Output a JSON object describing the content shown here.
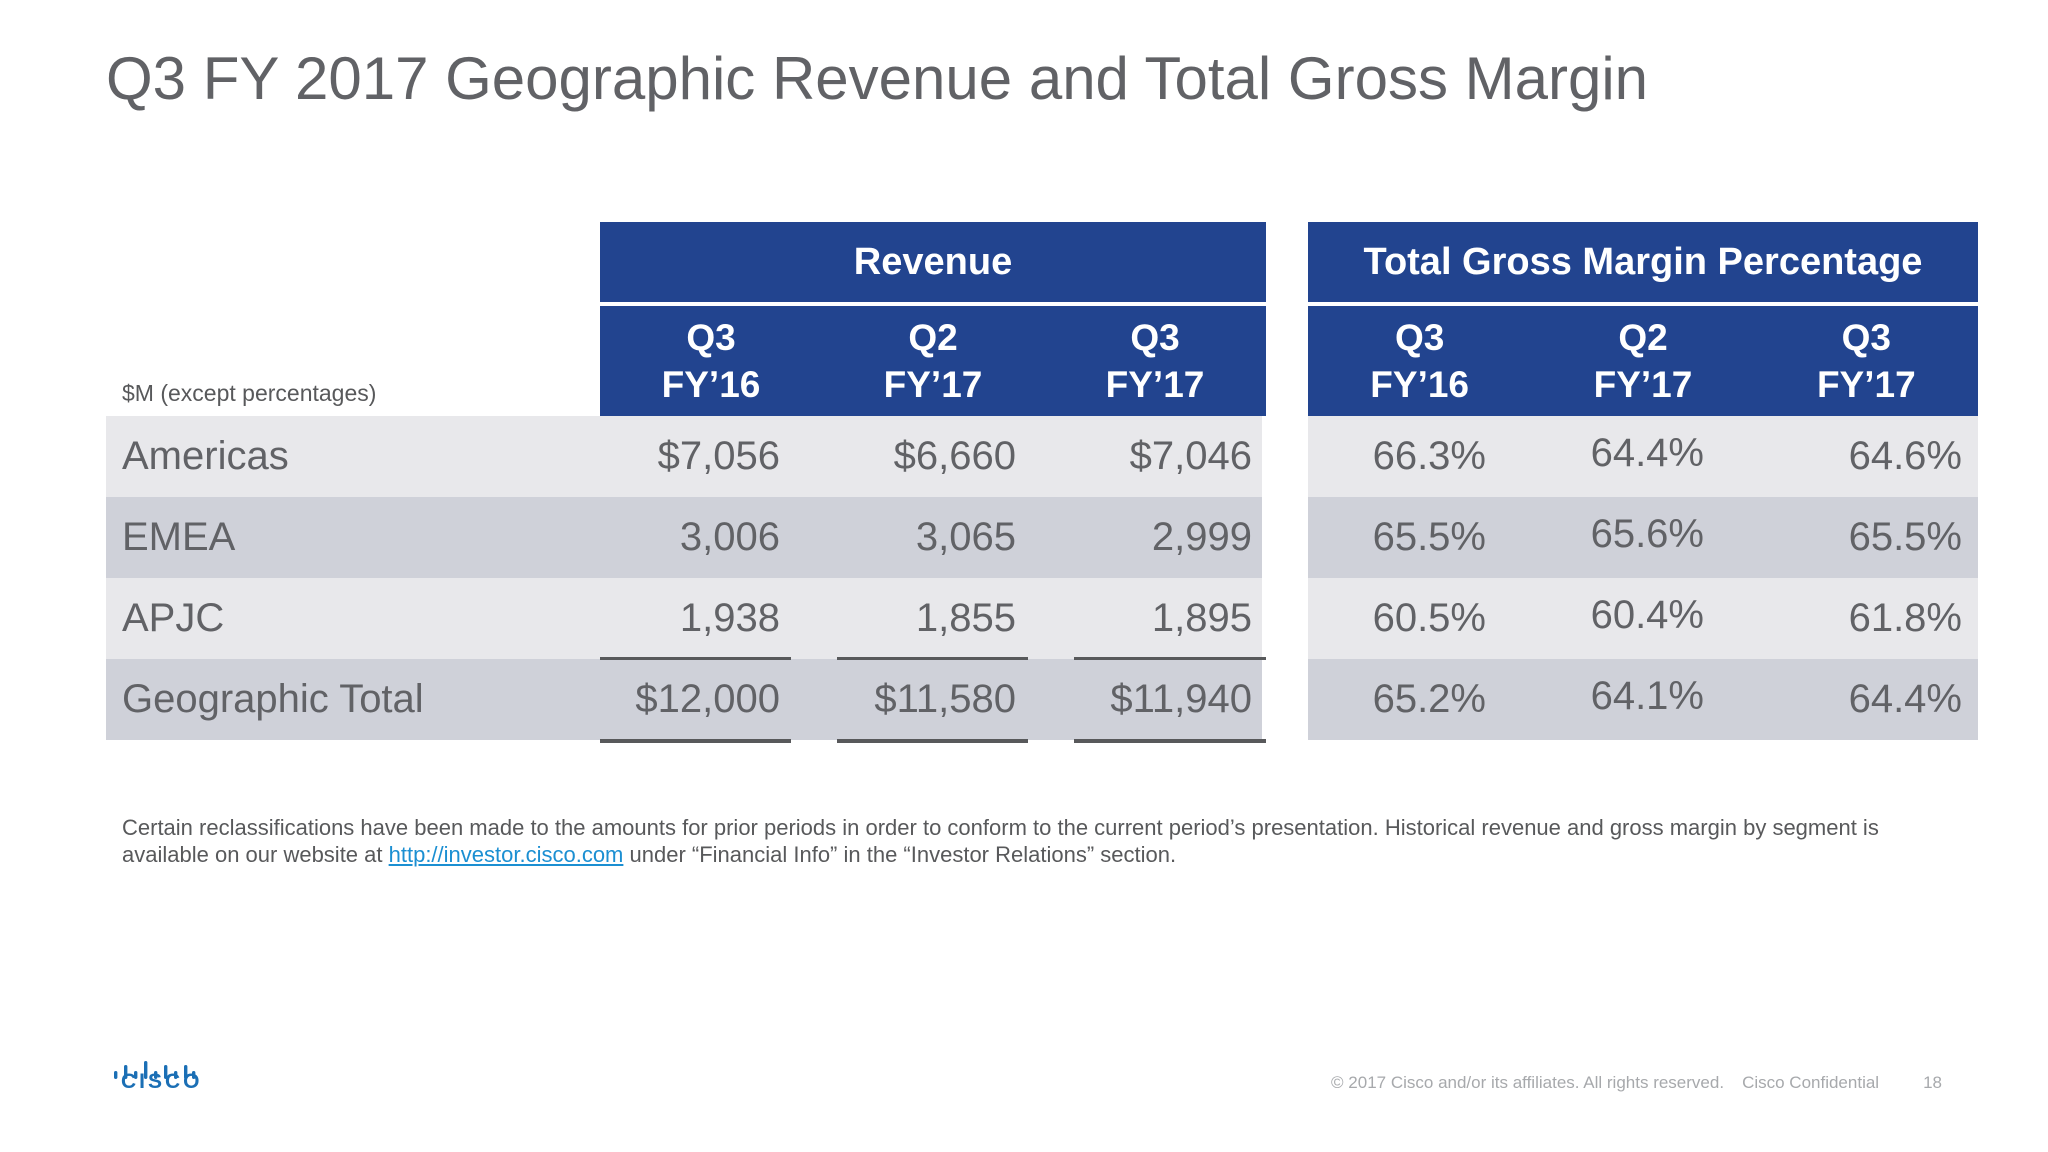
{
  "title": "Q3 FY 2017 Geographic Revenue and Total Gross Margin",
  "units_label": "$M (except percentages)",
  "revenue": {
    "header": "Revenue",
    "columns": [
      {
        "line1": "Q3",
        "line2": "FY’16"
      },
      {
        "line1": "Q2",
        "line2": "FY’17"
      },
      {
        "line1": "Q3",
        "line2": "FY’17"
      }
    ]
  },
  "margin": {
    "header": "Total Gross Margin Percentage",
    "columns": [
      {
        "line1": "Q3",
        "line2": "FY’16"
      },
      {
        "line1": "Q2",
        "line2": "FY’17"
      },
      {
        "line1": "Q3",
        "line2": "FY’17"
      }
    ]
  },
  "rows": [
    {
      "label": "Americas",
      "revenue": [
        "$7,056",
        "$6,660",
        "$7,046"
      ],
      "margin": [
        "66.3%",
        "64.4%",
        "64.6%"
      ]
    },
    {
      "label": "EMEA",
      "revenue": [
        "3,006",
        "3,065",
        "2,999"
      ],
      "margin": [
        "65.5%",
        "65.6%",
        "65.5%"
      ]
    },
    {
      "label": "APJC",
      "revenue": [
        "1,938",
        "1,855",
        "1,895"
      ],
      "margin": [
        "60.5%",
        "60.4%",
        "61.8%"
      ]
    },
    {
      "label": "Geographic Total",
      "revenue": [
        "$12,000",
        "$11,580",
        "$11,940"
      ],
      "margin": [
        "65.2%",
        "64.1%",
        "64.4%"
      ]
    }
  ],
  "footnote": {
    "text_before": "Certain reclassifications have been made to the amounts for prior periods in order to conform to the current period’s presentation. Historical revenue and gross margin by segment is available on our website at ",
    "link": "http://investor.cisco.com",
    "text_after": " under “Financial Info” in the “Investor Relations” section."
  },
  "logo": {
    "word": "CISCO",
    "icon": "cisco-bridge-logo",
    "color": "#1b6fb5"
  },
  "footer": {
    "copyright": "© 2017  Cisco and/or its affiliates. All rights reserved.",
    "confidential": "Cisco Confidential",
    "page_number": "18"
  },
  "colors": {
    "header_blue": "#22448f",
    "row_light": "#e8e8eb",
    "row_dark": "#cfd1d9",
    "text_gray": "#616266"
  }
}
